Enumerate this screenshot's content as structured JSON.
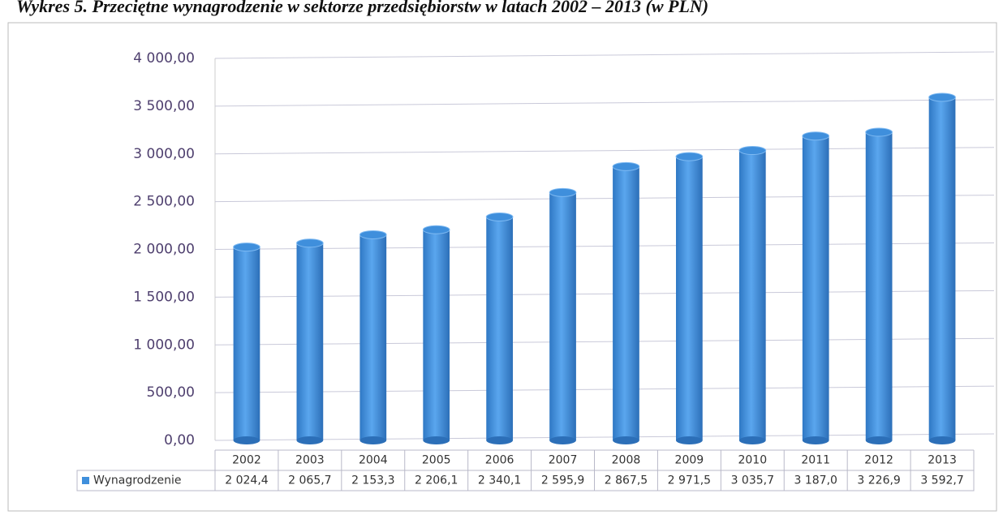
{
  "chart_data": {
    "type": "bar",
    "title": "Wykres 5. Przeciętne wynagrodzenie w sektorze przedsiębiorstw w latach 2002 – 2013 (w PLN)",
    "categories": [
      "2002",
      "2003",
      "2004",
      "2005",
      "2006",
      "2007",
      "2008",
      "2009",
      "2010",
      "2011",
      "2012",
      "2013"
    ],
    "series": [
      {
        "name": "Wynagrodzenie",
        "color": "#3f8fdc",
        "values": [
          2024.4,
          2065.7,
          2153.3,
          2206.1,
          2340.1,
          2595.9,
          2867.5,
          2971.5,
          3035.7,
          3187.0,
          3226.9,
          3592.7
        ],
        "value_labels": [
          "2 024,4",
          "2 065,7",
          "2 153,3",
          "2 206,1",
          "2 340,1",
          "2 595,9",
          "2 867,5",
          "2 971,5",
          "3 035,7",
          "3 187,0",
          "3 226,9",
          "3 592,7"
        ]
      }
    ],
    "ylim": [
      0,
      4000
    ],
    "yticks": [
      {
        "value": 0,
        "label": "0,00"
      },
      {
        "value": 500,
        "label": "500,00"
      },
      {
        "value": 1000,
        "label": "1 000,00"
      },
      {
        "value": 1500,
        "label": "1 500,00"
      },
      {
        "value": 2000,
        "label": "2 000,00"
      },
      {
        "value": 2500,
        "label": "2 500,00"
      },
      {
        "value": 3000,
        "label": "3 000,00"
      },
      {
        "value": 3500,
        "label": "3 500,00"
      },
      {
        "value": 4000,
        "label": "4 000,00"
      }
    ],
    "grid": true
  }
}
